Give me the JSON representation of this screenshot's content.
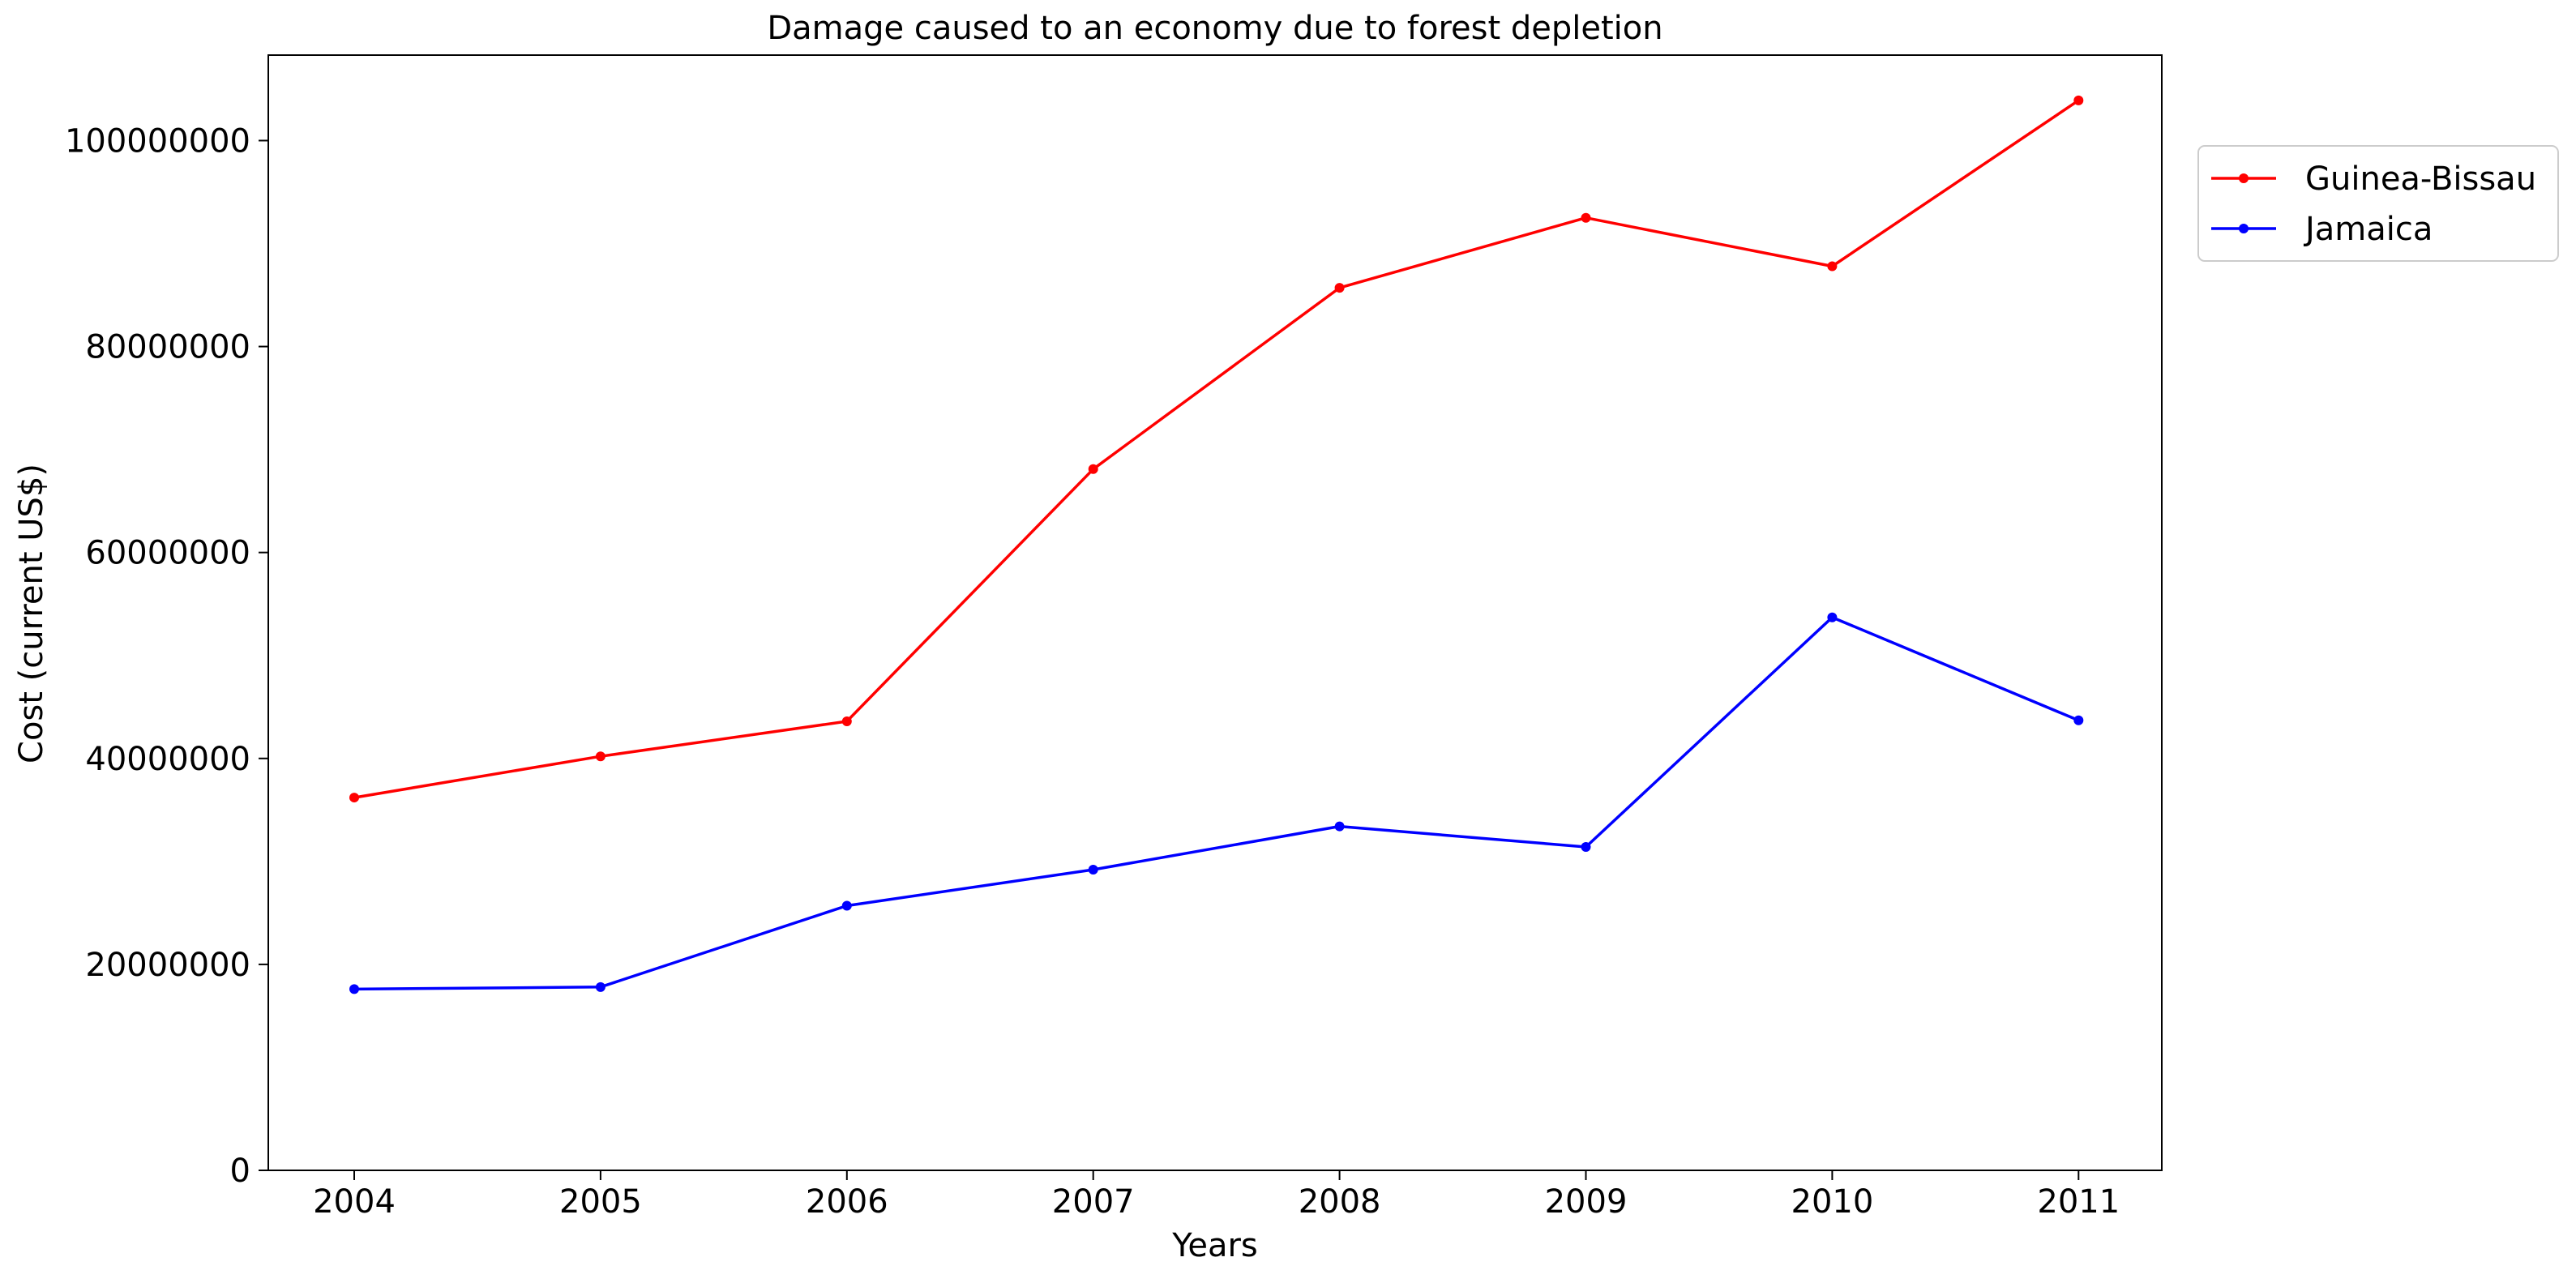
{
  "chart_data": {
    "type": "line",
    "title": "Damage caused to an economy due to forest depletion",
    "xlabel": "Years",
    "ylabel": "Cost (current US$)",
    "categories": [
      "2004",
      "2005",
      "2006",
      "2007",
      "2008",
      "2009",
      "2010",
      "2011"
    ],
    "y_ticks": [
      "0",
      "20000000",
      "40000000",
      "60000000",
      "80000000",
      "100000000"
    ],
    "y_tick_values": [
      0,
      20000000,
      40000000,
      60000000,
      80000000,
      100000000
    ],
    "ylim": [
      0,
      108300000
    ],
    "grid": false,
    "legend_position": "top-right-outside",
    "series": [
      {
        "name": "Guinea-Bissau",
        "color": "#ff0000",
        "values": [
          36200000,
          40200000,
          43600000,
          68100000,
          85700000,
          92500000,
          87800000,
          103900000
        ]
      },
      {
        "name": "Jamaica",
        "color": "#0000ff",
        "values": [
          17600000,
          17800000,
          25700000,
          29200000,
          33400000,
          31400000,
          53700000,
          43700000
        ]
      }
    ]
  }
}
